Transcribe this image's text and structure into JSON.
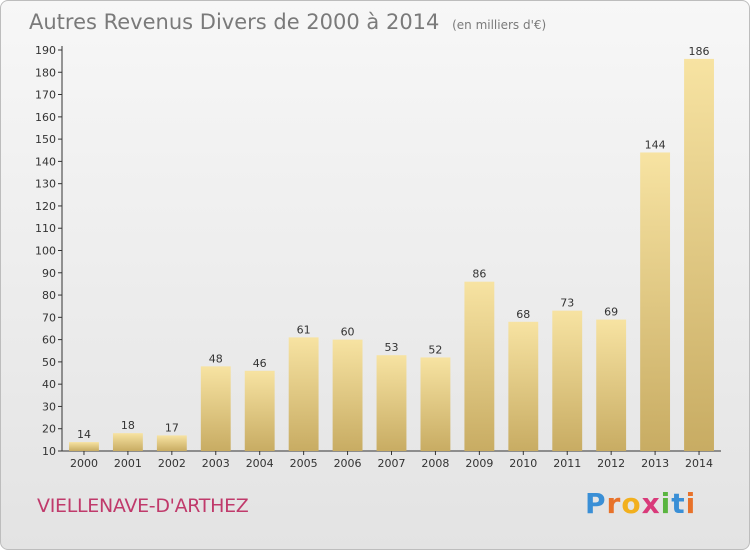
{
  "header": {
    "title": "Autres Revenus Divers de 2000 à 2014",
    "unit": "(en milliers d'€)"
  },
  "commune": "VIELLENAVE-D'ARTHEZ",
  "logo": {
    "text": "Proxiti",
    "letters": [
      "P",
      "r",
      "o",
      "x",
      "i",
      "t",
      "i"
    ],
    "colors": [
      "#3a8fd6",
      "#e8722a",
      "#f2b01e",
      "#d93a7a",
      "#5ab540",
      "#3a8fd6",
      "#e8722a"
    ]
  },
  "colors": {
    "bar_light": "#f7e3a2",
    "bar_dark": "#c8ac63",
    "axis": "#333333",
    "text": "#333333"
  },
  "chart_data": {
    "type": "bar",
    "title": "Autres Revenus Divers de 2000 à 2014",
    "subtitle": "(en milliers d'€)",
    "categories": [
      "2000",
      "2001",
      "2002",
      "2003",
      "2004",
      "2005",
      "2006",
      "2007",
      "2008",
      "2009",
      "2010",
      "2011",
      "2012",
      "2013",
      "2014"
    ],
    "values": [
      14,
      18,
      17,
      48,
      46,
      61,
      60,
      53,
      52,
      86,
      68,
      73,
      69,
      144,
      186
    ],
    "ylim": [
      10,
      190
    ],
    "yticks": [
      10,
      20,
      30,
      40,
      50,
      60,
      70,
      80,
      90,
      100,
      110,
      120,
      130,
      140,
      150,
      160,
      170,
      180,
      190
    ],
    "xlabel": "",
    "ylabel": "",
    "grid": false,
    "data_labels": true
  }
}
